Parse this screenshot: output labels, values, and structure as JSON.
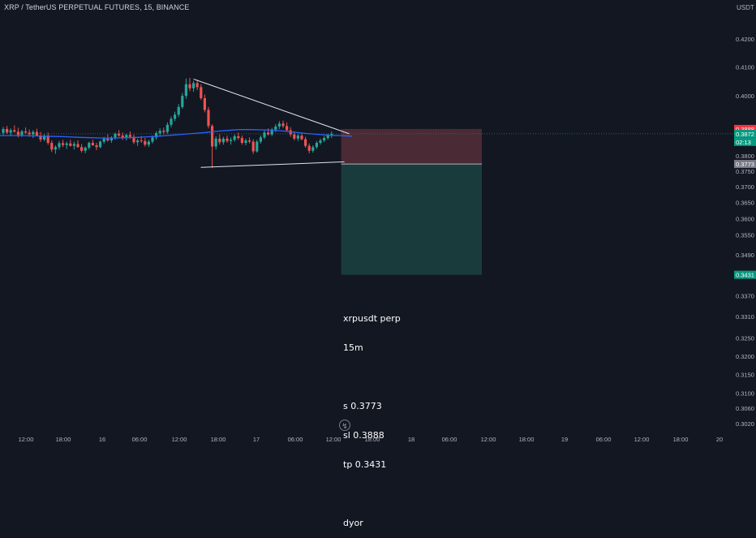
{
  "header": {
    "title": "XRP / TetherUS PERPETUAL FUTURES, 15, BINANCE",
    "unit": "USDT"
  },
  "colors": {
    "background": "#131722",
    "up_candle": "#26a69a",
    "down_candle": "#ef5350",
    "ma_line": "#2962ff",
    "trendline": "#e0e3eb",
    "stop_zone": "#4a2a35",
    "target_zone": "#1a3b3c",
    "price_badge_red": "#f23645",
    "price_badge_green": "#089981",
    "price_badge_gray": "#787b86"
  },
  "icons": {
    "replay": "lightning-bolt-icon"
  },
  "chart_data": {
    "type": "candlestick",
    "y_axis": {
      "scale": "log",
      "ticks": [
        "0.4200",
        "0.4100",
        "0.4000",
        "0.3800",
        "0.3750",
        "0.3700",
        "0.3650",
        "0.3600",
        "0.3550",
        "0.3490",
        "0.3370",
        "0.3310",
        "0.3250",
        "0.3200",
        "0.3150",
        "0.3100",
        "0.3060",
        "0.3020"
      ],
      "ylim": [
        0.3005,
        0.4275
      ]
    },
    "x_axis": {
      "ticks": [
        "12:00",
        "18:00",
        "16",
        "06:00",
        "12:00",
        "18:00",
        "17",
        "06:00",
        "12:00",
        "18:00",
        "18",
        "06:00",
        "12:00",
        "18:00",
        "19",
        "06:00",
        "12:00",
        "18:00",
        "20"
      ]
    },
    "price_badges": [
      {
        "label": "0.3888",
        "color": "red"
      },
      {
        "label": "0.3872",
        "color": "green"
      },
      {
        "label": "02:13",
        "color": "green"
      },
      {
        "label": "0.3773",
        "color": "gray"
      },
      {
        "label": "0.3431",
        "color": "green"
      }
    ],
    "current_price": 0.3872,
    "ohlc": [
      [
        0.3875,
        0.3895,
        0.3868,
        0.3888
      ],
      [
        0.3888,
        0.3898,
        0.3872,
        0.3876
      ],
      [
        0.3876,
        0.389,
        0.3866,
        0.3884
      ],
      [
        0.3884,
        0.39,
        0.3876,
        0.3879
      ],
      [
        0.3879,
        0.3892,
        0.386,
        0.3868
      ],
      [
        0.3868,
        0.3885,
        0.3862,
        0.388
      ],
      [
        0.388,
        0.3893,
        0.3872,
        0.3876
      ],
      [
        0.3876,
        0.3886,
        0.3862,
        0.387
      ],
      [
        0.387,
        0.3884,
        0.3858,
        0.3878
      ],
      [
        0.3878,
        0.3889,
        0.3866,
        0.3865
      ],
      [
        0.3865,
        0.3878,
        0.3845,
        0.3853
      ],
      [
        0.3853,
        0.3872,
        0.3848,
        0.3866
      ],
      [
        0.3866,
        0.3876,
        0.3836,
        0.3842
      ],
      [
        0.3842,
        0.385,
        0.3812,
        0.382
      ],
      [
        0.382,
        0.3834,
        0.3806,
        0.3828
      ],
      [
        0.3828,
        0.3848,
        0.382,
        0.3841
      ],
      [
        0.3841,
        0.3852,
        0.3828,
        0.3835
      ],
      [
        0.3835,
        0.3846,
        0.3822,
        0.384
      ],
      [
        0.384,
        0.3852,
        0.383,
        0.3832
      ],
      [
        0.3832,
        0.3846,
        0.382,
        0.3838
      ],
      [
        0.3838,
        0.385,
        0.3826,
        0.3828
      ],
      [
        0.3828,
        0.3838,
        0.381,
        0.3816
      ],
      [
        0.3816,
        0.383,
        0.3808,
        0.3826
      ],
      [
        0.3826,
        0.3846,
        0.382,
        0.3842
      ],
      [
        0.3842,
        0.3852,
        0.3832,
        0.3834
      ],
      [
        0.3834,
        0.3842,
        0.3818,
        0.3828
      ],
      [
        0.3828,
        0.385,
        0.3824,
        0.3846
      ],
      [
        0.3846,
        0.3862,
        0.384,
        0.3856
      ],
      [
        0.3856,
        0.387,
        0.3846,
        0.385
      ],
      [
        0.385,
        0.3864,
        0.3842,
        0.386
      ],
      [
        0.386,
        0.3876,
        0.3852,
        0.3872
      ],
      [
        0.3872,
        0.3884,
        0.3862,
        0.3866
      ],
      [
        0.3866,
        0.3876,
        0.3852,
        0.3858
      ],
      [
        0.3858,
        0.3872,
        0.385,
        0.3868
      ],
      [
        0.3868,
        0.388,
        0.3856,
        0.3862
      ],
      [
        0.3862,
        0.387,
        0.3838,
        0.3844
      ],
      [
        0.3844,
        0.3856,
        0.3832,
        0.385
      ],
      [
        0.385,
        0.3864,
        0.3842,
        0.3848
      ],
      [
        0.3848,
        0.3858,
        0.383,
        0.3836
      ],
      [
        0.3836,
        0.3852,
        0.3828,
        0.3846
      ],
      [
        0.3846,
        0.3866,
        0.384,
        0.386
      ],
      [
        0.386,
        0.388,
        0.3852,
        0.3874
      ],
      [
        0.3874,
        0.389,
        0.3866,
        0.3882
      ],
      [
        0.3882,
        0.3892,
        0.387,
        0.3878
      ],
      [
        0.3878,
        0.391,
        0.3872,
        0.3902
      ],
      [
        0.3902,
        0.393,
        0.3894,
        0.3922
      ],
      [
        0.3922,
        0.3946,
        0.3914,
        0.3936
      ],
      [
        0.3936,
        0.3972,
        0.3928,
        0.3962
      ],
      [
        0.3962,
        0.401,
        0.3956,
        0.4
      ],
      [
        0.4,
        0.406,
        0.399,
        0.404
      ],
      [
        0.404,
        0.4062,
        0.4016,
        0.4026
      ],
      [
        0.4026,
        0.4052,
        0.4014,
        0.4044
      ],
      [
        0.4044,
        0.4056,
        0.402,
        0.403
      ],
      [
        0.403,
        0.404,
        0.3986,
        0.3992
      ],
      [
        0.3992,
        0.4004,
        0.3944,
        0.3952
      ],
      [
        0.3952,
        0.3962,
        0.389,
        0.3898
      ],
      [
        0.3898,
        0.3904,
        0.376,
        0.383
      ],
      [
        0.383,
        0.3864,
        0.382,
        0.3856
      ],
      [
        0.3856,
        0.387,
        0.3836,
        0.3844
      ],
      [
        0.3844,
        0.3862,
        0.3836,
        0.3856
      ],
      [
        0.3856,
        0.3866,
        0.3842,
        0.3848
      ],
      [
        0.3848,
        0.386,
        0.3836,
        0.3852
      ],
      [
        0.3852,
        0.387,
        0.3846,
        0.3864
      ],
      [
        0.3864,
        0.3876,
        0.3852,
        0.3858
      ],
      [
        0.3858,
        0.3866,
        0.3836,
        0.3842
      ],
      [
        0.3842,
        0.3856,
        0.3834,
        0.385
      ],
      [
        0.385,
        0.386,
        0.384,
        0.3846
      ],
      [
        0.3846,
        0.3854,
        0.3806,
        0.3814
      ],
      [
        0.3814,
        0.3852,
        0.381,
        0.3846
      ],
      [
        0.3846,
        0.3866,
        0.384,
        0.386
      ],
      [
        0.386,
        0.3884,
        0.3854,
        0.3876
      ],
      [
        0.3876,
        0.389,
        0.3866,
        0.387
      ],
      [
        0.387,
        0.3892,
        0.3864,
        0.3886
      ],
      [
        0.3886,
        0.3904,
        0.3878,
        0.3896
      ],
      [
        0.3896,
        0.3914,
        0.3888,
        0.3906
      ],
      [
        0.3906,
        0.3916,
        0.3892,
        0.3898
      ],
      [
        0.3898,
        0.391,
        0.388,
        0.3884
      ],
      [
        0.3884,
        0.3894,
        0.3862,
        0.387
      ],
      [
        0.387,
        0.388,
        0.385,
        0.3856
      ],
      [
        0.3856,
        0.3872,
        0.3848,
        0.3866
      ],
      [
        0.3866,
        0.3876,
        0.385,
        0.3854
      ],
      [
        0.3854,
        0.3862,
        0.3826,
        0.3832
      ],
      [
        0.3832,
        0.384,
        0.3808,
        0.3816
      ],
      [
        0.3816,
        0.3834,
        0.381,
        0.3828
      ],
      [
        0.3828,
        0.3848,
        0.3822,
        0.3842
      ],
      [
        0.3842,
        0.3856,
        0.3836,
        0.385
      ],
      [
        0.385,
        0.3864,
        0.3844,
        0.3858
      ],
      [
        0.3858,
        0.3872,
        0.3852,
        0.3866
      ],
      [
        0.3866,
        0.388,
        0.3858,
        0.3872
      ]
    ],
    "ma": [
      0.3866,
      0.3866,
      0.3866,
      0.3865,
      0.3864,
      0.3863,
      0.3862,
      0.386,
      0.3859,
      0.3858,
      0.3858,
      0.3859,
      0.386,
      0.3862,
      0.3864,
      0.3867,
      0.387,
      0.3873,
      0.3876,
      0.388,
      0.3883,
      0.3886,
      0.3886,
      0.3885,
      0.3884,
      0.3881,
      0.3877,
      0.3873,
      0.387,
      0.3867,
      0.3866,
      0.3864
    ],
    "trendline_upper": [
      [
        51,
        0.4058
      ],
      [
        91,
        0.388
      ]
    ],
    "trendline_lower": [
      [
        56,
        0.3762
      ],
      [
        91,
        0.378
      ]
    ],
    "position": {
      "side": "short",
      "entry": 0.3773,
      "stop": 0.3888,
      "target": 0.3431,
      "start_bar": 91
    }
  },
  "note": {
    "lines": [
      "xrpusdt perp",
      "15m",
      "",
      "s 0.3773",
      "sl 0.3888",
      "tp 0.3431",
      "",
      "dyor"
    ]
  }
}
